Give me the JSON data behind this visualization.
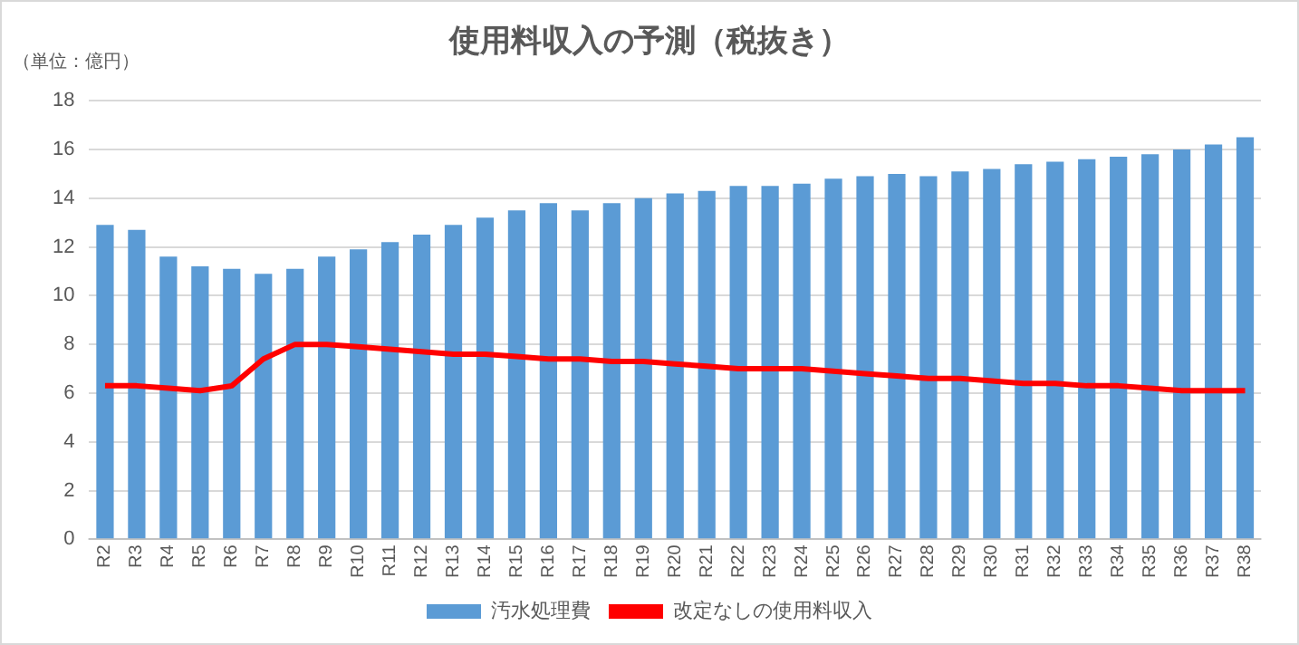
{
  "chart_data": {
    "type": "bar",
    "title": "使用料収入の予測（税抜き）",
    "ylabel": "（単位：億円）",
    "categories": [
      "R2",
      "R3",
      "R4",
      "R5",
      "R6",
      "R7",
      "R8",
      "R9",
      "R10",
      "R11",
      "R12",
      "R13",
      "R14",
      "R15",
      "R16",
      "R17",
      "R18",
      "R19",
      "R20",
      "R21",
      "R22",
      "R23",
      "R24",
      "R25",
      "R26",
      "R27",
      "R28",
      "R29",
      "R30",
      "R31",
      "R32",
      "R33",
      "R34",
      "R35",
      "R36",
      "R37",
      "R38"
    ],
    "series": [
      {
        "name": "汚水処理費",
        "color": "#5b9bd5",
        "values": [
          12.9,
          12.7,
          11.6,
          11.2,
          11.1,
          10.9,
          11.1,
          11.6,
          11.9,
          12.2,
          12.5,
          12.9,
          13.2,
          13.5,
          13.8,
          13.5,
          13.8,
          14.0,
          14.2,
          14.3,
          14.5,
          14.5,
          14.6,
          14.8,
          14.9,
          15.0,
          14.9,
          15.1,
          15.2,
          15.4,
          15.5,
          15.6,
          15.7,
          15.8,
          16.0,
          16.2,
          16.5
        ]
      },
      {
        "name": "改定なしの使用料収入",
        "type": "line",
        "color": "#ff0000",
        "values": [
          6.3,
          6.3,
          6.2,
          6.1,
          6.3,
          7.4,
          8.0,
          8.0,
          7.9,
          7.8,
          7.7,
          7.6,
          7.6,
          7.5,
          7.4,
          7.4,
          7.3,
          7.3,
          7.2,
          7.1,
          7.0,
          7.0,
          7.0,
          6.9,
          6.8,
          6.7,
          6.6,
          6.6,
          6.5,
          6.4,
          6.4,
          6.3,
          6.3,
          6.2,
          6.1,
          6.1,
          6.1
        ]
      }
    ],
    "ylim": [
      0,
      18
    ],
    "yticks": [
      0,
      2,
      4,
      6,
      8,
      10,
      12,
      14,
      16,
      18
    ],
    "grid": "y",
    "legend": "bottom",
    "marker": "none"
  }
}
